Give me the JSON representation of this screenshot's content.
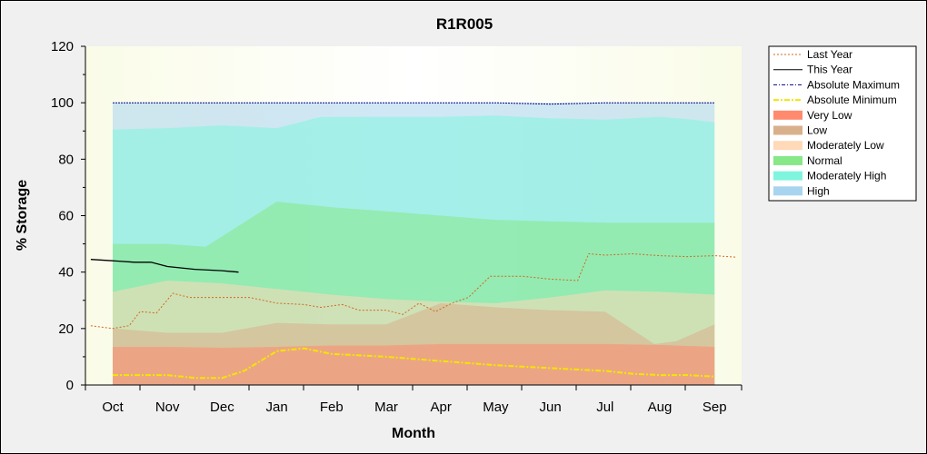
{
  "chart_data": {
    "type": "area",
    "title": "R1R005",
    "xlabel": "Month",
    "ylabel": "% Storage",
    "ylim": [
      0,
      120
    ],
    "yticks": [
      0,
      20,
      40,
      60,
      80,
      100,
      120
    ],
    "categories": [
      "Oct",
      "Nov",
      "Dec",
      "Jan",
      "Feb",
      "Mar",
      "Apr",
      "May",
      "Jun",
      "Jul",
      "Aug",
      "Sep"
    ],
    "grid": false,
    "legend_position": "right",
    "bands": [
      {
        "name": "Very Low",
        "color": "#ff8a6e",
        "upper": [
          13.5,
          13.5,
          13.2,
          13.5,
          14,
          14,
          14.5,
          14.5,
          14.5,
          14.5,
          14.2,
          13.5,
          13.5
        ],
        "x": [
          0,
          1,
          2,
          3,
          4,
          5,
          6,
          7,
          8,
          9,
          10,
          11,
          11
        ]
      },
      {
        "name": "Low",
        "color": "#d9b08c",
        "upper": [
          20,
          18.5,
          18.5,
          22,
          21.5,
          21.5,
          29,
          27.5,
          26.5,
          26,
          14.5,
          15.5,
          21.5
        ],
        "x": [
          0,
          1,
          2,
          3,
          4,
          5,
          6,
          7,
          8,
          9,
          9.9,
          10.3,
          11
        ]
      },
      {
        "name": "Moderately Low",
        "color": "#ffd9b8",
        "upper": [
          33,
          37,
          36,
          34,
          32,
          30.5,
          29.5,
          29,
          31,
          33.5,
          33,
          32.5,
          32
        ],
        "x": [
          0,
          1,
          2,
          3,
          4,
          5,
          6,
          7,
          8,
          9,
          10,
          10.5,
          11
        ]
      },
      {
        "name": "Normal",
        "color": "#86e886",
        "upper": [
          50,
          50,
          49,
          65,
          63,
          61.5,
          60,
          58.5,
          58,
          57.5,
          57.5,
          57.5,
          57.5
        ],
        "x": [
          0,
          1,
          1.7,
          3,
          4,
          5,
          6,
          7,
          8,
          9,
          10,
          10.5,
          11
        ]
      },
      {
        "name": "Moderately High",
        "color": "#7ff5de",
        "upper": [
          90.5,
          91,
          92,
          91,
          95,
          95,
          95,
          95.5,
          94.5,
          94,
          95,
          94,
          93
        ],
        "x": [
          0,
          1,
          2,
          3,
          3.8,
          5,
          6,
          7,
          8,
          9,
          10,
          10.6,
          11
        ]
      },
      {
        "name": "High",
        "color": "#a9d4ef",
        "upper": [
          100,
          100,
          100,
          100,
          100,
          100,
          100,
          100,
          100,
          100,
          100,
          100,
          100
        ],
        "x": [
          0,
          1,
          2,
          3,
          4,
          5,
          6,
          7,
          8,
          9,
          10,
          10.5,
          11
        ]
      }
    ],
    "series": [
      {
        "name": "Last Year",
        "color": "#d2691e",
        "style": "dashed",
        "x": [
          -0.4,
          0,
          0.3,
          0.5,
          0.8,
          1.1,
          1.4,
          2,
          2.5,
          3,
          3.5,
          3.8,
          4.2,
          4.5,
          5,
          5.3,
          5.6,
          5.9,
          6.2,
          6.5,
          6.9,
          7.5,
          8,
          8.5,
          8.7,
          9,
          9.5,
          10,
          10.5,
          11,
          11.4
        ],
        "y": [
          21,
          20,
          21,
          26,
          25.5,
          32.5,
          31,
          31,
          31,
          29,
          28.5,
          27.5,
          28.5,
          26.5,
          26.5,
          25,
          29,
          26,
          29,
          31,
          38.5,
          38.5,
          37.5,
          37,
          46.5,
          46,
          46.5,
          45.8,
          45.5,
          45.8,
          45.3
        ]
      },
      {
        "name": "This Year",
        "color": "#000000",
        "style": "solid",
        "x": [
          -0.4,
          0,
          0.4,
          0.7,
          1,
          1.5,
          2,
          2.3
        ],
        "y": [
          44.5,
          44,
          43.5,
          43.5,
          42,
          41,
          40.5,
          40
        ]
      },
      {
        "name": "Absolute Maximum",
        "color": "#00008b",
        "style": "dotted",
        "x": [
          0,
          1,
          2,
          3,
          4,
          5,
          6,
          7,
          8,
          9,
          10,
          11
        ],
        "y": [
          100,
          100,
          100,
          100,
          100,
          100,
          100,
          100,
          99.5,
          100,
          100,
          100
        ]
      },
      {
        "name": "Absolute Minimum",
        "color": "#f2e600",
        "style": "dashdot",
        "x": [
          0,
          0.5,
          1,
          1.5,
          2,
          2.4,
          3,
          3.5,
          4,
          5,
          6,
          7,
          8,
          9,
          9.5,
          10,
          10.5,
          11
        ],
        "y": [
          3.5,
          3.5,
          3.5,
          2.5,
          2.5,
          5,
          12,
          13,
          11,
          10,
          8.5,
          7,
          6,
          5,
          4,
          3.5,
          3.5,
          3
        ]
      }
    ]
  },
  "legend": {
    "items": [
      {
        "label": "Last Year",
        "kind": "line",
        "color": "#d2691e",
        "dash": "2,2",
        "width": 1
      },
      {
        "label": "This Year",
        "kind": "line",
        "color": "#000000",
        "dash": "",
        "width": 1
      },
      {
        "label": "Absolute Maximum",
        "kind": "line",
        "color": "#00008b",
        "dash": "4,2,1,2",
        "width": 1
      },
      {
        "label": "Absolute Minimum",
        "kind": "line",
        "color": "#f2e600",
        "dash": "6,2,2,2",
        "width": 2
      },
      {
        "label": "Very Low",
        "kind": "fill",
        "color": "#ff8a6e"
      },
      {
        "label": "Low",
        "kind": "fill",
        "color": "#d9b08c"
      },
      {
        "label": "Moderately Low",
        "kind": "fill",
        "color": "#ffd9b8"
      },
      {
        "label": "Normal",
        "kind": "fill",
        "color": "#86e886"
      },
      {
        "label": "Moderately High",
        "kind": "fill",
        "color": "#7ff5de"
      },
      {
        "label": "High",
        "kind": "fill",
        "color": "#a9d4ef"
      }
    ]
  }
}
